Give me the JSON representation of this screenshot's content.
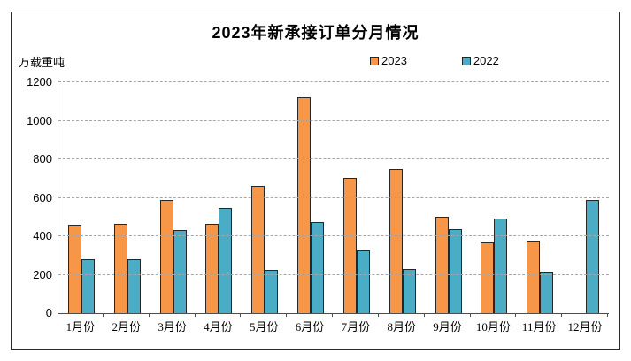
{
  "chart_data": {
    "type": "bar",
    "title": "2023年新承接订单分月情况",
    "ylabel": "万载重吨",
    "xlabel": "",
    "categories": [
      "1月份",
      "2月份",
      "3月份",
      "4月份",
      "5月份",
      "6月份",
      "7月份",
      "8月份",
      "9月份",
      "10月份",
      "11月份",
      "12月份"
    ],
    "series": [
      {
        "name": "2023",
        "color": "#F79646",
        "values": [
          460,
          465,
          590,
          465,
          660,
          1120,
          705,
          750,
          500,
          370,
          375,
          null
        ]
      },
      {
        "name": "2022",
        "color": "#4BACC6",
        "values": [
          280,
          280,
          430,
          545,
          225,
          475,
          325,
          230,
          435,
          490,
          215,
          590
        ]
      }
    ],
    "ylim": [
      0,
      1200
    ],
    "ytick_step": 200,
    "yticks": [
      0,
      200,
      400,
      600,
      800,
      1000,
      1200
    ],
    "grid": "horizontal-dashed",
    "legend_position": "top-center"
  },
  "colors": {
    "bar_border": "#262626",
    "axis": "#4d4d4d",
    "gridline": "#a6a6a6",
    "frame_border": "#2b2b2b",
    "background": "#ffffff",
    "text": "#000000"
  }
}
